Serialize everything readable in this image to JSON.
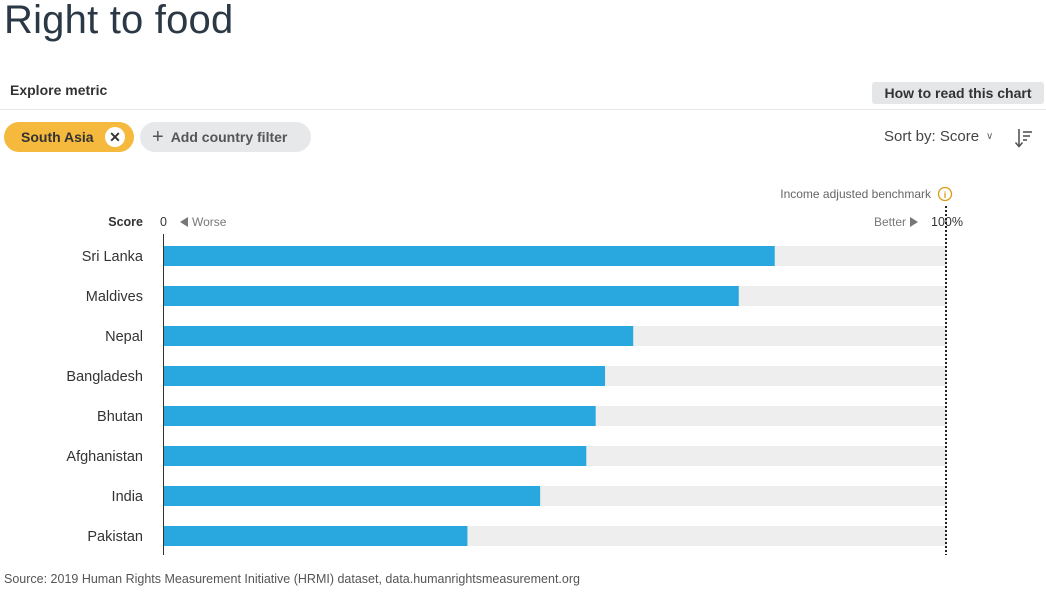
{
  "page": {
    "title": "Right to food",
    "explore_label": "Explore metric",
    "how_to_read_label": "How to read this chart"
  },
  "filters": {
    "active_chip": "South Asia",
    "remove_icon": "close-icon",
    "add_filter_label": "Add country filter",
    "add_icon": "plus-icon"
  },
  "sort": {
    "label": "Sort by: Score",
    "sort_icon": "sort-descending-icon"
  },
  "colors": {
    "bar": "#29a8e0",
    "track": "#eeeeee",
    "chip": "#f5b93e",
    "info_icon": "#d99a16"
  },
  "chart_data": {
    "type": "bar",
    "orientation": "horizontal",
    "axis_label": "Score",
    "xlim": [
      0,
      100
    ],
    "min_label": "0",
    "max_label": "100%",
    "worse_label": "Worse",
    "better_label": "Better",
    "benchmark_label": "Income adjusted benchmark",
    "benchmark_value": 100,
    "categories": [
      "Sri Lanka",
      "Maldives",
      "Nepal",
      "Bangladesh",
      "Bhutan",
      "Afghanistan",
      "India",
      "Pakistan"
    ],
    "values": [
      78.1,
      73.5,
      60.0,
      56.4,
      55.2,
      54.0,
      48.1,
      38.8
    ]
  },
  "footer": {
    "source": "Source: 2019 Human Rights Measurement Initiative (HRMI) dataset, data.humanrightsmeasurement.org"
  }
}
